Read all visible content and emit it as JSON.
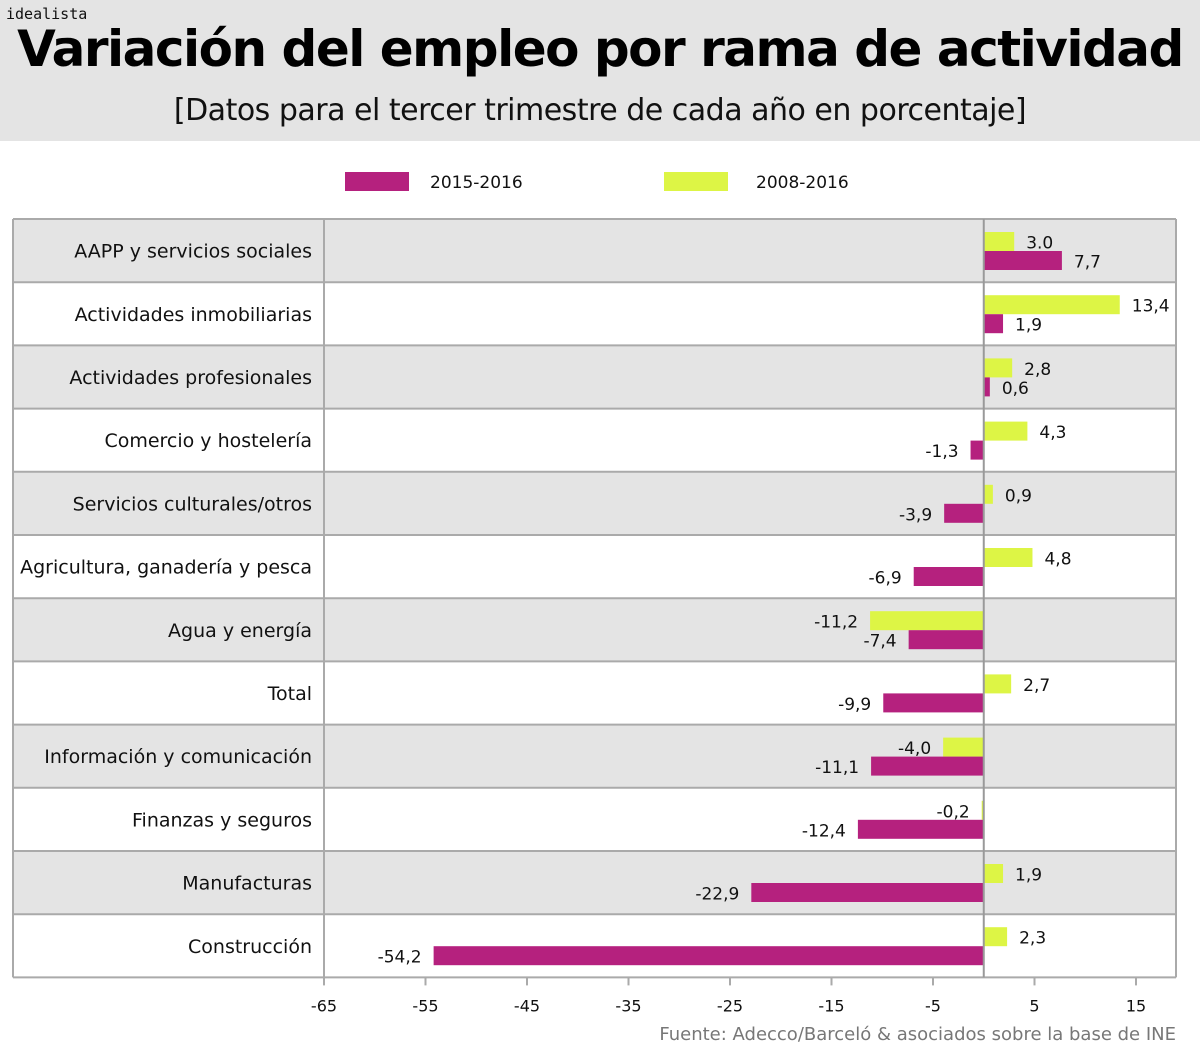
{
  "brand": "idealista",
  "title": "Variación del empleo por rama de actividad",
  "subtitle": "[Datos para el tercer trimestre de cada año en porcentaje]",
  "source": "Fuente: Adecco/Barceló & asociados sobre la base de INE",
  "colors": {
    "s2015": "#b5217e",
    "s2008": "#ddf545",
    "band": "#e4e4e4",
    "grid": "#aaaaaa"
  },
  "chart_data": {
    "type": "bar",
    "orientation": "horizontal",
    "title": "Variación del empleo por rama de actividad",
    "categories": [
      "AAPP y servicios sociales",
      "Actividades inmobiliarias",
      "Actividades profesionales",
      "Comercio y hostelería",
      "Servicios culturales/otros",
      "Agricultura, ganadería y pesca",
      "Agua y energía",
      "Total",
      "Información y comunicación",
      "Finanzas y seguros",
      "Manufacturas",
      "Construcción"
    ],
    "series": [
      {
        "name": "2015-2016",
        "color": "#b5217e",
        "values": [
          7.7,
          1.9,
          0.6,
          -1.3,
          -3.9,
          -6.9,
          -7.4,
          -9.9,
          -11.1,
          -12.4,
          -22.9,
          -54.2
        ],
        "labels": [
          "7,7",
          "1,9",
          "0,6",
          "-1,3",
          "-3,9",
          "-6,9",
          "-7,4",
          "-9,9",
          "-11,1",
          "-12,4",
          "-22,9",
          "-54,2"
        ]
      },
      {
        "name": "2008-2016",
        "color": "#ddf545",
        "values": [
          3.0,
          13.4,
          2.8,
          4.3,
          0.9,
          4.8,
          -11.2,
          2.7,
          -4.0,
          -0.2,
          1.9,
          2.3
        ],
        "labels": [
          "3.0",
          "13,4",
          "2,8",
          "4,3",
          "0,9",
          "4,8",
          "-11,2",
          "2,7",
          "-4,0",
          "-0,2",
          "1,9",
          "2,3"
        ]
      }
    ],
    "xlim": [
      -65,
      15
    ],
    "xticks": [
      -65,
      -55,
      -45,
      -35,
      -25,
      -15,
      -5,
      5,
      15
    ],
    "legend": "top-center",
    "xlabel": "",
    "ylabel": ""
  }
}
